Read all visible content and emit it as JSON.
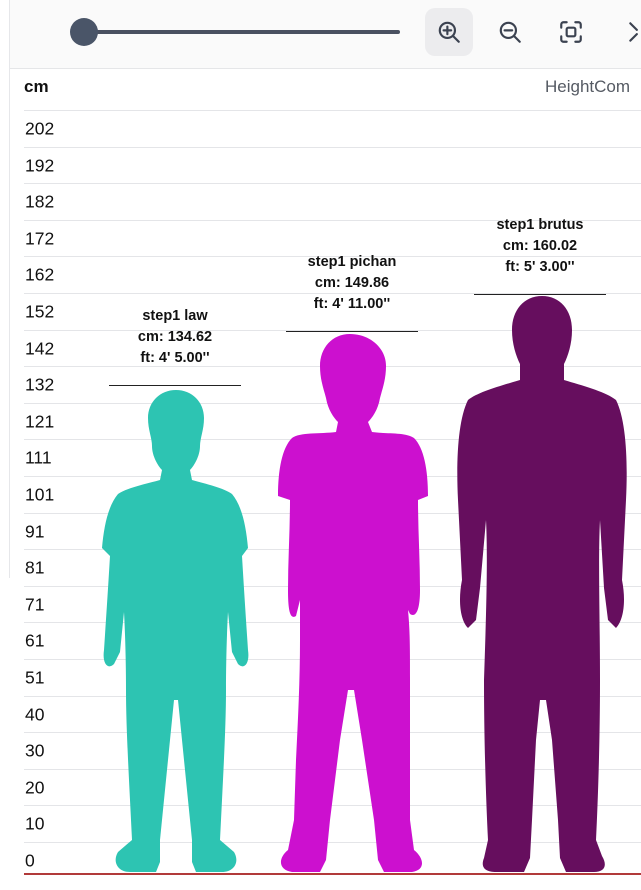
{
  "toolbar": {
    "zoom_slider": {
      "value": 0.0
    },
    "icons": [
      "zoom-in-icon",
      "zoom-out-icon",
      "fit-screen-icon",
      "expand-icon"
    ]
  },
  "chart": {
    "unit": "cm",
    "title": "HeightCom",
    "ticks": [
      "202",
      "192",
      "182",
      "172",
      "162",
      "152",
      "142",
      "132",
      "121",
      "111",
      "101",
      "91",
      "81",
      "71",
      "61",
      "51",
      "40",
      "30",
      "20",
      "10",
      "0"
    ],
    "baseline_color": "#b13a3a"
  },
  "people": [
    {
      "name": "step1 law",
      "cm": "cm: 134.62",
      "ft": "ft: 4' 5.00''",
      "height_cm": 134.62,
      "color": "#2dc4b2"
    },
    {
      "name": "step1 pichan",
      "cm": "cm: 149.86",
      "ft": "ft: 4' 11.00''",
      "height_cm": 149.86,
      "color": "#cc10cf"
    },
    {
      "name": "step1 brutus",
      "cm": "cm: 160.02",
      "ft": "ft: 5' 3.00''",
      "height_cm": 160.02,
      "color": "#660e5e"
    }
  ]
}
